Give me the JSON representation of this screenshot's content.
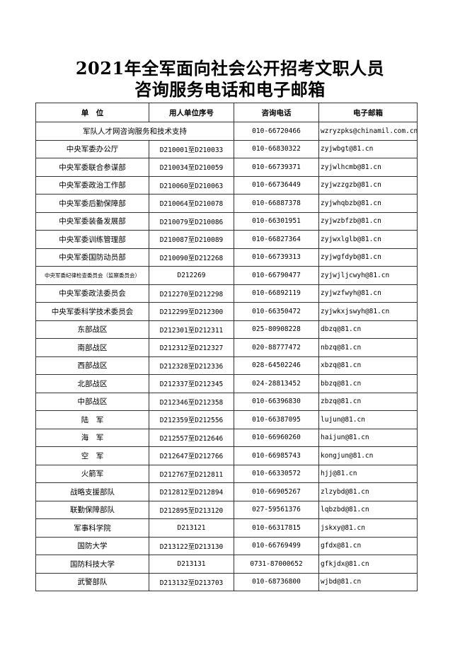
{
  "title": {
    "line1": "2021年全军面向社会公开招考文职人员",
    "line2": "咨询服务电话和电子邮箱"
  },
  "table": {
    "headers": [
      "单　位",
      "用人单位序号",
      "咨询电话",
      "电子邮箱"
    ],
    "support_row": {
      "unit": "军队人才网咨询服务和技术支持",
      "phone": "010-66720466",
      "email": "wzryzpks@chinamil.com.cn"
    },
    "rows": [
      {
        "unit": "中央军委办公厅",
        "code": "D210001至D210033",
        "phone": "010-66830322",
        "email": "zyjwbgt@81.cn"
      },
      {
        "unit": "中央军委联合参谋部",
        "code": "D210034至D210059",
        "phone": "010-66739371",
        "email": "zyjwlhcmb@81.cn"
      },
      {
        "unit": "中央军委政治工作部",
        "code": "D210060至D210063",
        "phone": "010-66736449",
        "email": "zyjwzzgzb@81.cn"
      },
      {
        "unit": "中央军委后勤保障部",
        "code": "D210064至D210078",
        "phone": "010-66887378",
        "email": "zyjwhqbzb@81.cn"
      },
      {
        "unit": "中央军委装备发展部",
        "code": "D210079至D210086",
        "phone": "010-66301951",
        "email": "zyjwzbfzb@81.cn"
      },
      {
        "unit": "中央军委训练管理部",
        "code": "D210087至D210089",
        "phone": "010-66827364",
        "email": "zyjwxlglb@81.cn"
      },
      {
        "unit": "中央军委国防动员部",
        "code": "D210090至D212268",
        "phone": "010-66739313",
        "email": "zyjwgfdyb@81.cn"
      },
      {
        "unit": "中央军委纪律检查委员会（监察委员会）",
        "code": "D212269",
        "phone": "010-66790477",
        "email": "zyjwjljcwyh@81.cn"
      },
      {
        "unit": "中央军委政法委员会",
        "code": "D212270至D212298",
        "phone": "010-66892119",
        "email": "zyjwzfwyh@81.cn"
      },
      {
        "unit": "中央军委科学技术委员会",
        "code": "D212299至D212300",
        "phone": "010-66350472",
        "email": "zyjwkxjswyh@81.cn"
      },
      {
        "unit": "东部战区",
        "code": "D212301至D212311",
        "phone": "025-80908228",
        "email": "dbzq@81.cn"
      },
      {
        "unit": "南部战区",
        "code": "D212312至D212327",
        "phone": "020-88777472",
        "email": "nbzq@81.cn"
      },
      {
        "unit": "西部战区",
        "code": "D212328至D212336",
        "phone": "028-64502246",
        "email": "xbzq@81.cn"
      },
      {
        "unit": "北部战区",
        "code": "D212337至D212345",
        "phone": "024-28813452",
        "email": "bbzq@81.cn"
      },
      {
        "unit": "中部战区",
        "code": "D212346至D212358",
        "phone": "010-66396830",
        "email": "zbzq@81.cn"
      },
      {
        "unit": "陆　军",
        "code": "D212359至D212556",
        "phone": "010-66387095",
        "email": "lujun@81.cn"
      },
      {
        "unit": "海　军",
        "code": "D212557至D212646",
        "phone": "010-66960260",
        "email": "haijun@81.cn"
      },
      {
        "unit": "空　军",
        "code": "D212647至D212766",
        "phone": "010-66985743",
        "email": "kongjun@81.cn"
      },
      {
        "unit": "火箭军",
        "code": "D212767至D212811",
        "phone": "010-66330572",
        "email": "hjj@81.cn"
      },
      {
        "unit": "战略支援部队",
        "code": "D212812至D212894",
        "phone": "010-66905267",
        "email": "zlzybd@81.cn"
      },
      {
        "unit": "联勤保障部队",
        "code": "D212895至D213120",
        "phone": "027-59561376",
        "email": "lqbzbd@81.cn"
      },
      {
        "unit": "军事科学院",
        "code": "D213121",
        "phone": "010-66317815",
        "email": "jskxy@81.cn"
      },
      {
        "unit": "国防大学",
        "code": "D213122至D213130",
        "phone": "010-66769499",
        "email": "gfdx@81.cn"
      },
      {
        "unit": "国防科技大学",
        "code": "D213131",
        "phone": "0731-87000652",
        "email": "gfkjdx@81.cn"
      },
      {
        "unit": "武警部队",
        "code": "D213132至D213703",
        "phone": "010-68736800",
        "email": "wjbd@81.cn"
      }
    ]
  }
}
